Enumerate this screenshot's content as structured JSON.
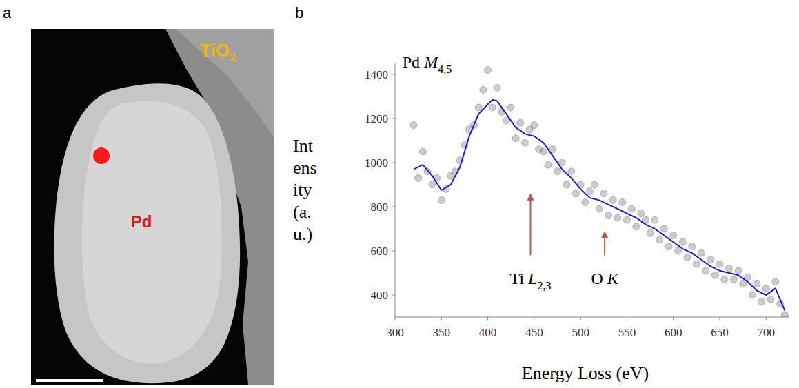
{
  "panel_a": {
    "letter": "a",
    "particle_label": "Pd",
    "support_label": {
      "text": "TiO",
      "subscript": "2"
    }
  },
  "chart_data": {
    "type": "scatter",
    "panel_letter": "b",
    "x_label": "Energy Loss (eV)",
    "y_label": "Intensity (a.u.)",
    "xlim": [
      300,
      725
    ],
    "ylim": [
      300,
      1450
    ],
    "xticks": [
      300,
      350,
      400,
      450,
      500,
      550,
      600,
      650,
      700
    ],
    "yticks": [
      400,
      600,
      800,
      1000,
      1200,
      1400
    ],
    "grid": false,
    "series": [
      {
        "type": "scatter",
        "color": "#555555",
        "marker": "circle",
        "x": [
          320,
          325,
          330,
          335,
          340,
          345,
          350,
          355,
          360,
          365,
          370,
          375,
          380,
          385,
          390,
          395,
          400,
          405,
          410,
          415,
          420,
          425,
          430,
          435,
          440,
          445,
          450,
          455,
          460,
          465,
          470,
          475,
          480,
          485,
          490,
          495,
          500,
          505,
          510,
          515,
          520,
          525,
          530,
          535,
          540,
          545,
          550,
          555,
          560,
          565,
          570,
          575,
          580,
          585,
          590,
          595,
          600,
          605,
          610,
          615,
          620,
          625,
          630,
          635,
          640,
          645,
          650,
          655,
          660,
          665,
          670,
          675,
          680,
          685,
          690,
          695,
          700,
          705,
          710,
          715,
          720
        ],
        "values": [
          1170,
          930,
          1050,
          960,
          900,
          930,
          830,
          880,
          940,
          960,
          1010,
          1080,
          1150,
          1170,
          1250,
          1330,
          1420,
          1250,
          1340,
          1230,
          1190,
          1250,
          1110,
          1180,
          1090,
          1150,
          1170,
          1060,
          1050,
          990,
          1060,
          960,
          1000,
          900,
          960,
          860,
          900,
          820,
          870,
          900,
          790,
          860,
          760,
          830,
          750,
          820,
          740,
          790,
          710,
          770,
          740,
          680,
          740,
          650,
          700,
          620,
          670,
          600,
          640,
          570,
          620,
          540,
          590,
          510,
          560,
          490,
          540,
          470,
          520,
          470,
          510,
          450,
          480,
          400,
          450,
          370,
          430,
          380,
          460,
          360,
          310
        ]
      },
      {
        "type": "line",
        "color": "#1a1ae6",
        "line_style": "solid",
        "x": [
          320,
          330,
          340,
          350,
          360,
          370,
          380,
          390,
          400,
          405,
          410,
          420,
          430,
          440,
          450,
          460,
          470,
          480,
          490,
          500,
          510,
          520,
          530,
          540,
          550,
          560,
          570,
          580,
          590,
          600,
          610,
          620,
          630,
          640,
          650,
          660,
          670,
          680,
          690,
          700,
          710,
          720
        ],
        "values": [
          970,
          990,
          940,
          875,
          900,
          980,
          1120,
          1220,
          1265,
          1285,
          1280,
          1220,
          1160,
          1130,
          1120,
          1090,
          1030,
          970,
          930,
          880,
          840,
          830,
          810,
          790,
          770,
          750,
          720,
          700,
          670,
          640,
          610,
          590,
          560,
          530,
          510,
          500,
          490,
          460,
          420,
          400,
          430,
          330
        ]
      }
    ],
    "annotations": [
      {
        "text": "Pd M",
        "subscript": "4,5",
        "x": 308,
        "y": 1430
      },
      {
        "text": "Ti L",
        "subscript": "2,3",
        "x": 446,
        "y": 860,
        "arrow_from": 580
      },
      {
        "text": "O K",
        "subscript": "",
        "x": 526,
        "y": 690,
        "arrow_from": 580
      }
    ]
  }
}
